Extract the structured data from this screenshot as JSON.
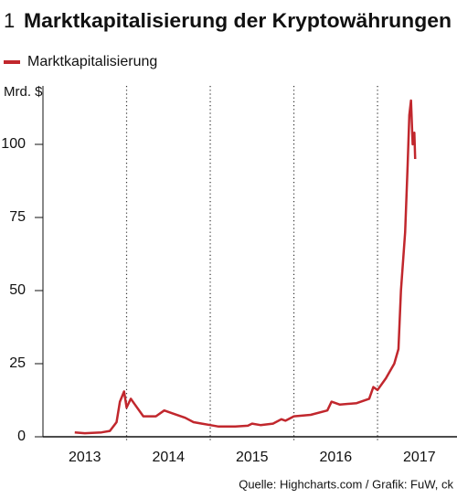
{
  "chart_data": {
    "type": "line",
    "figure_number": "1",
    "title": "Marktkapitalisierung der Kryptowährungen",
    "y_axis_label": "Mrd. $",
    "source": "Quelle: Highcharts.com / Grafik: FuW, ck",
    "legend_position": "top-left",
    "x": [
      2013.38,
      2013.5,
      2013.7,
      2013.8,
      2013.88,
      2013.92,
      2013.97,
      2014.0,
      2014.05,
      2014.1,
      2014.2,
      2014.35,
      2014.45,
      2014.55,
      2014.7,
      2014.8,
      2014.9,
      2015.0,
      2015.1,
      2015.3,
      2015.45,
      2015.5,
      2015.6,
      2015.75,
      2015.85,
      2015.9,
      2016.0,
      2016.2,
      2016.4,
      2016.45,
      2016.55,
      2016.75,
      2016.9,
      2016.95,
      2017.0,
      2017.1,
      2017.2,
      2017.25,
      2017.28,
      2017.33,
      2017.36,
      2017.38,
      2017.4,
      2017.42,
      2017.44,
      2017.45
    ],
    "series": [
      {
        "name": "Marktkapitalisierung",
        "color": "#c1272d",
        "values": [
          1.5,
          1.2,
          1.5,
          2,
          5,
          12,
          15.5,
          10,
          13,
          11,
          7,
          7,
          9,
          8,
          6.5,
          5,
          4.5,
          4,
          3.5,
          3.5,
          3.8,
          4.5,
          4,
          4.5,
          6,
          5.5,
          7,
          7.5,
          9,
          12,
          11,
          11.5,
          13,
          17,
          16,
          20,
          25,
          30,
          50,
          70,
          93,
          110,
          115,
          100,
          104,
          95
        ]
      }
    ],
    "xlim": [
      2013,
      2017.95
    ],
    "ylim": [
      0,
      120
    ],
    "yticks": [
      0,
      25,
      50,
      75,
      100
    ],
    "xticks": [
      {
        "value": 2013.5,
        "label": "2013"
      },
      {
        "value": 2014.5,
        "label": "2014"
      },
      {
        "value": 2015.5,
        "label": "2015"
      },
      {
        "value": 2016.5,
        "label": "2016"
      },
      {
        "value": 2017.5,
        "label": "2017"
      }
    ],
    "xgrid": [
      2014,
      2015,
      2016,
      2017
    ]
  }
}
